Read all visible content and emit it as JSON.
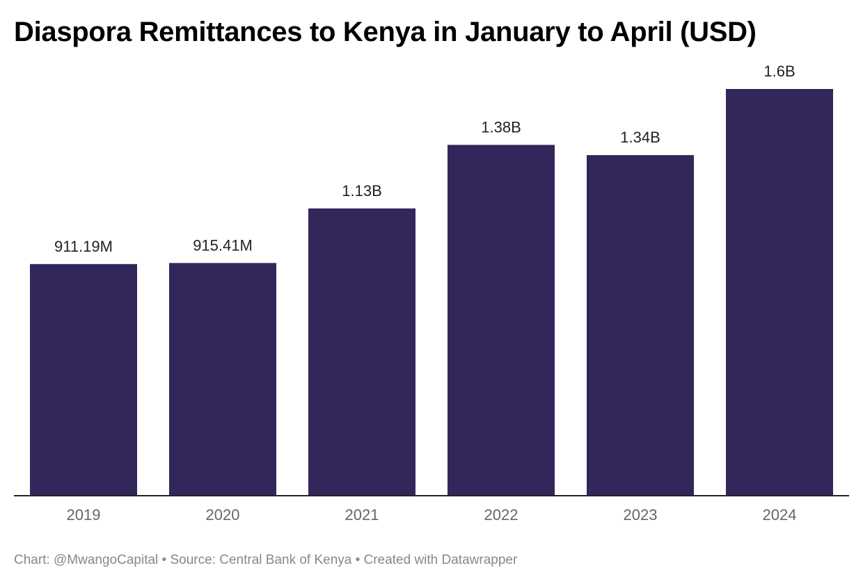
{
  "title": "Diaspora Remittances to Kenya in January to April (USD)",
  "footer": {
    "chart_credit": "Chart: @MwangoCapital",
    "separator": " • ",
    "source": "Source: Central Bank of Kenya",
    "created_with": "Created with Datawrapper"
  },
  "colors": {
    "bar": "#32265A",
    "axis": "#222222"
  },
  "chart_data": {
    "type": "bar",
    "title": "Diaspora Remittances to Kenya in January to April (USD)",
    "categories": [
      "2019",
      "2020",
      "2021",
      "2022",
      "2023",
      "2024"
    ],
    "values": [
      911190000,
      915410000,
      1130000000,
      1380000000,
      1340000000,
      1600000000
    ],
    "value_labels": [
      "911.19M",
      "915.41M",
      "1.13B",
      "1.38B",
      "1.34B",
      "1.6B"
    ],
    "unit": "USD",
    "xlabel": "",
    "ylabel": "",
    "ylim": [
      0,
      1600000000
    ],
    "grid": false,
    "legend": "none"
  }
}
